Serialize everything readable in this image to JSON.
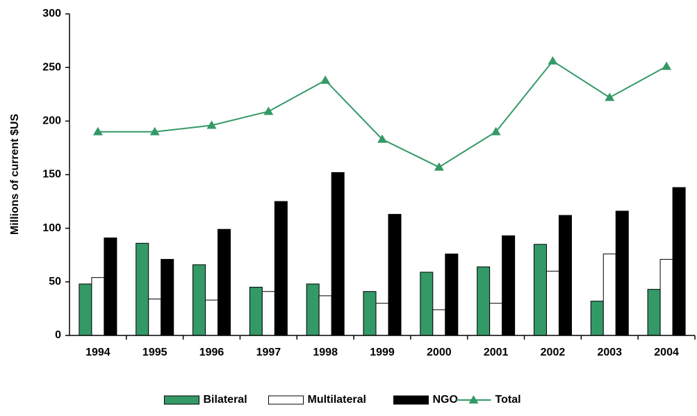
{
  "chart_data": {
    "type": "bar",
    "categories": [
      "1994",
      "1995",
      "1996",
      "1997",
      "1998",
      "1999",
      "2000",
      "2001",
      "2002",
      "2003",
      "2004"
    ],
    "y_label": "Millions of current $US",
    "series": [
      {
        "name": "Bilateral",
        "type": "bar",
        "color": "#339966",
        "values": [
          48,
          86,
          66,
          45,
          48,
          41,
          59,
          64,
          85,
          32,
          43
        ]
      },
      {
        "name": "Multilateral",
        "type": "bar",
        "color": "#ffffff",
        "values": [
          54,
          34,
          33,
          41,
          37,
          30,
          24,
          30,
          60,
          76,
          71
        ]
      },
      {
        "name": "NGO",
        "type": "bar",
        "color": "#000000",
        "values": [
          91,
          71,
          99,
          125,
          152,
          113,
          76,
          93,
          112,
          116,
          138
        ]
      },
      {
        "name": "Total",
        "type": "line",
        "color": "#339966",
        "values": [
          190,
          190,
          196,
          209,
          238,
          183,
          157,
          190,
          256,
          222,
          251
        ]
      }
    ],
    "ylim": [
      0,
      300
    ],
    "yticks": [
      0,
      50,
      100,
      150,
      200,
      250,
      300
    ],
    "grid": false,
    "legend": "bottom"
  }
}
